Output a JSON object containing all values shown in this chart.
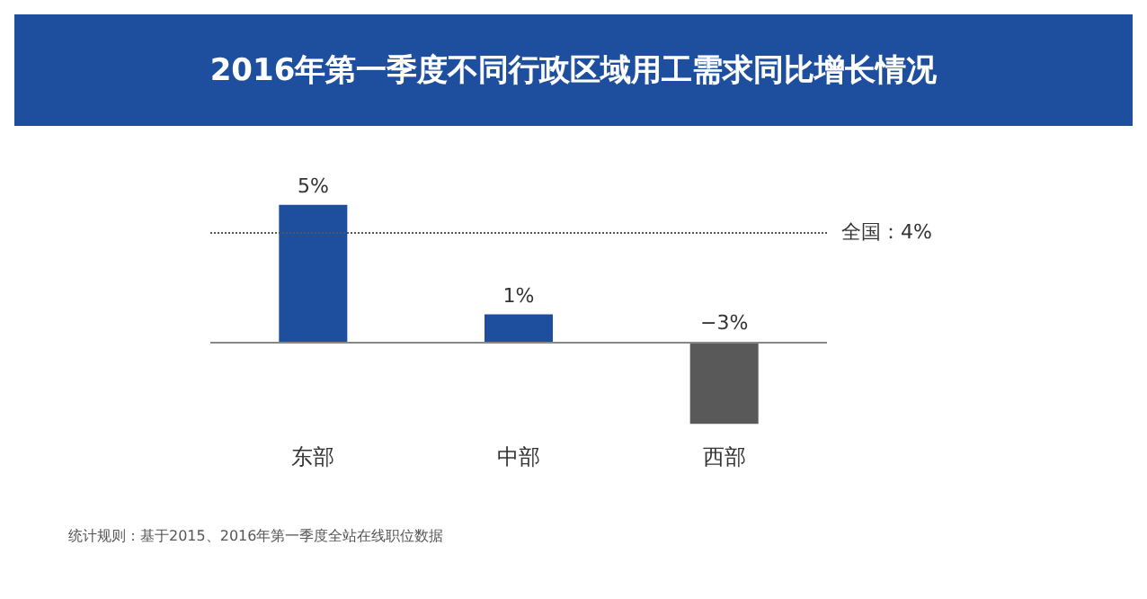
{
  "chart_data": {
    "type": "bar",
    "title": "2016年第一季度不同行政区域用工需求同比增长情况",
    "categories": [
      "东部",
      "中部",
      "西部"
    ],
    "values": [
      5,
      1,
      -3
    ],
    "colors": [
      "#1d4f9e",
      "#1d4f9e",
      "#595959"
    ],
    "value_labels": [
      "5%",
      "1%",
      "−3%"
    ],
    "ref_lines": [
      {
        "axis": "y",
        "value": 4,
        "label": "全国：4%",
        "line_style": "dotted",
        "color": "#555555"
      }
    ],
    "annotations": [
      "统计规则：基于2015、2016年第一季度全站在线职位数据"
    ]
  }
}
